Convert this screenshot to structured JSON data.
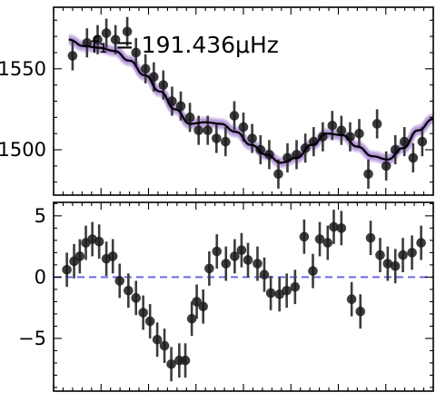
{
  "chart_data": [
    {
      "type": "scatter",
      "panel": "top",
      "annotation": "f₁ = 191.436μHz",
      "xlabel": "",
      "ylabel": "",
      "xlim": [
        0,
        1
      ],
      "ylim": [
        1472,
        1588
      ],
      "yticks_major": [
        1500,
        1550
      ],
      "ytick_labels": [
        "1500",
        "1550"
      ],
      "grid": false,
      "series": [
        {
          "kind": "points_with_errorbars",
          "x": [
            0.05,
            0.088,
            0.116,
            0.139,
            0.163,
            0.194,
            0.217,
            0.242,
            0.264,
            0.289,
            0.312,
            0.335,
            0.359,
            0.382,
            0.406,
            0.429,
            0.453,
            0.476,
            0.5,
            0.523,
            0.545,
            0.568,
            0.592,
            0.616,
            0.64,
            0.663,
            0.685,
            0.709,
            0.734,
            0.758,
            0.781,
            0.805,
            0.829,
            0.852,
            0.876,
            0.9,
            0.924,
            0.947,
            0.971
          ],
          "y": [
            1558,
            1566,
            1568,
            1572,
            1568,
            1573,
            1560,
            1550,
            1545,
            1540,
            1530,
            1527,
            1520,
            1512,
            1512,
            1507,
            1505,
            1521,
            1514,
            1507,
            1500,
            1497,
            1485,
            1495,
            1497,
            1501,
            1505,
            1508,
            1515,
            1512,
            1508,
            1510,
            1485,
            1516,
            1490,
            1500,
            1505,
            1495,
            1505
          ],
          "err": [
            9,
            9,
            9,
            9,
            9,
            9,
            9,
            9,
            9,
            9,
            9,
            9,
            9,
            9,
            9,
            9,
            9,
            9,
            9,
            9,
            9,
            9,
            9,
            9,
            9,
            9,
            9,
            9,
            9,
            9,
            9,
            9,
            9,
            9,
            9,
            9,
            9,
            9,
            9
          ]
        },
        {
          "kind": "model_curve",
          "x": [
            0.04,
            0.08,
            0.12,
            0.16,
            0.2,
            0.24,
            0.28,
            0.32,
            0.36,
            0.4,
            0.44,
            0.48,
            0.52,
            0.56,
            0.6,
            0.64,
            0.68,
            0.72,
            0.76,
            0.8,
            0.84,
            0.88,
            0.92,
            0.96,
            1.0
          ],
          "y": [
            1568,
            1564,
            1563,
            1561,
            1555,
            1546,
            1536,
            1525,
            1516,
            1517,
            1516,
            1511,
            1503,
            1497,
            1492,
            1495,
            1503,
            1510,
            1509,
            1502,
            1496,
            1494,
            1501,
            1512,
            1519
          ]
        }
      ],
      "colors": {
        "points": "#1a1a1a",
        "errorbars": "#3c3c3c",
        "model": "#000000",
        "band": "#8a5cc4"
      }
    },
    {
      "type": "scatter",
      "panel": "bottom",
      "xlabel": "",
      "ylabel": "",
      "xlim": [
        0,
        1
      ],
      "ylim": [
        -9.3,
        6.1
      ],
      "yticks_major": [
        -5,
        0,
        5
      ],
      "ytick_labels": [
        "−5",
        "0",
        "5"
      ],
      "grid": false,
      "reference_line": {
        "y": 0,
        "style": "dashed",
        "color": "#6a6ae6"
      },
      "series": [
        {
          "kind": "points_with_errorbars",
          "x": [
            0.035,
            0.054,
            0.069,
            0.085,
            0.102,
            0.12,
            0.139,
            0.156,
            0.174,
            0.197,
            0.217,
            0.236,
            0.254,
            0.273,
            0.292,
            0.31,
            0.331,
            0.347,
            0.364,
            0.377,
            0.394,
            0.41,
            0.43,
            0.454,
            0.477,
            0.495,
            0.512,
            0.537,
            0.555,
            0.572,
            0.595,
            0.614,
            0.636,
            0.66,
            0.683,
            0.701,
            0.722,
            0.738,
            0.758,
            0.785,
            0.808,
            0.835,
            0.86,
            0.88,
            0.9,
            0.92,
            0.944,
            0.968
          ],
          "y": [
            0.6,
            1.3,
            1.7,
            2.8,
            3.1,
            2.9,
            1.5,
            1.7,
            -0.3,
            -1.1,
            -1.7,
            -2.9,
            -3.6,
            -5.1,
            -5.6,
            -7.1,
            -6.8,
            -6.8,
            -3.4,
            -2.0,
            -2.4,
            0.7,
            2.1,
            1.1,
            1.7,
            2.2,
            1.4,
            1.1,
            0.2,
            -1.3,
            -1.4,
            -1.1,
            -0.8,
            3.3,
            0.5,
            3.1,
            2.8,
            4.1,
            4.0,
            -1.8,
            -2.8,
            3.2,
            1.8,
            1.1,
            0.9,
            1.8,
            2.0,
            2.8
          ],
          "err": [
            1.4,
            1.4,
            1.4,
            1.4,
            1.4,
            1.4,
            1.4,
            1.4,
            1.4,
            1.4,
            1.4,
            1.4,
            1.4,
            1.4,
            1.4,
            1.4,
            1.4,
            1.4,
            1.4,
            1.4,
            1.4,
            1.4,
            1.4,
            1.4,
            1.4,
            1.4,
            1.4,
            1.4,
            1.4,
            1.4,
            1.4,
            1.4,
            1.4,
            1.4,
            1.4,
            1.4,
            1.4,
            1.4,
            1.4,
            1.4,
            1.4,
            1.4,
            1.4,
            1.4,
            1.4,
            1.4,
            1.4,
            1.4
          ]
        }
      ],
      "colors": {
        "points": "#1a1a1a",
        "errorbars": "#3c3c3c"
      }
    }
  ]
}
